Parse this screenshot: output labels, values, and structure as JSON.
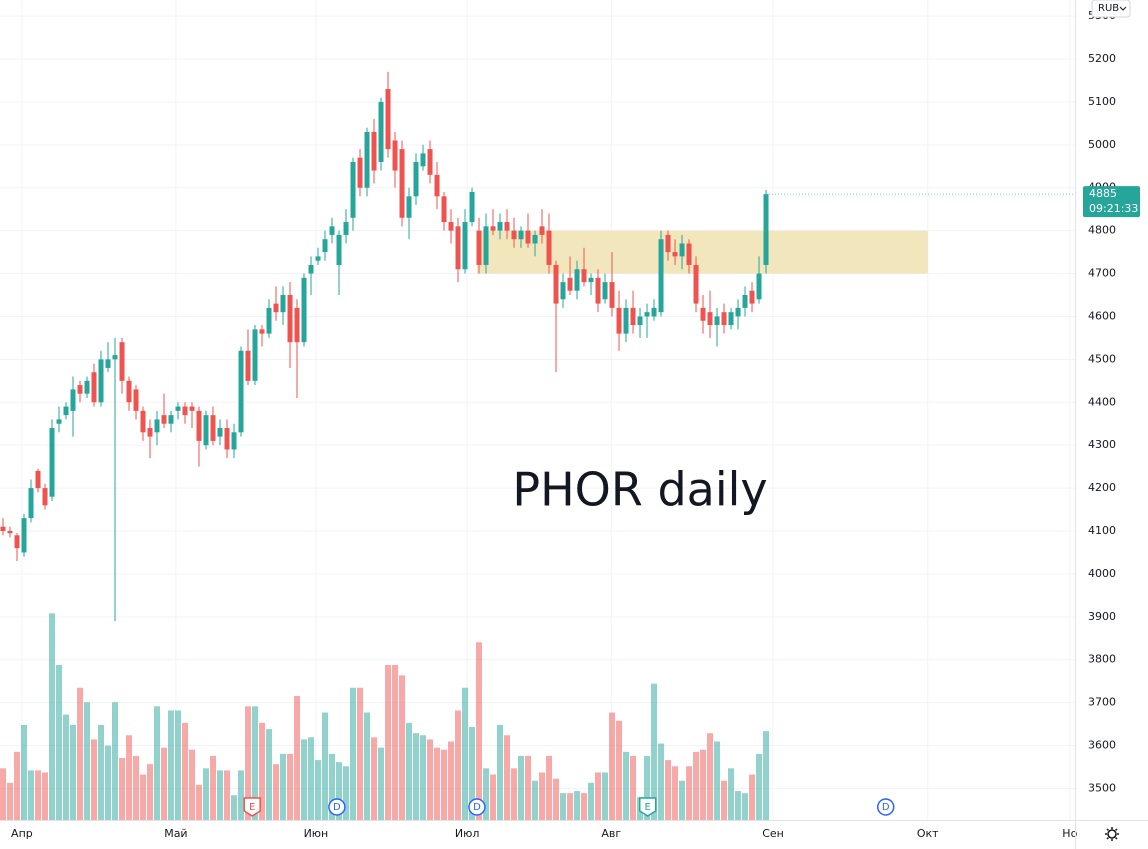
{
  "chart_data": {
    "type": "candlestick",
    "annotation": "PHOR daily",
    "currency": "RUB",
    "last_price": 4885,
    "countdown": "09:21:33",
    "up_color": "#26a69a",
    "down_color": "#ef5350",
    "grid": true,
    "ylim": [
      3426.5,
      5337.5
    ],
    "yticks": [
      3500,
      3600,
      3700,
      3800,
      3900,
      4000,
      4100,
      4200,
      4300,
      4400,
      4500,
      4600,
      4700,
      4800,
      4900,
      5000,
      5100,
      5200,
      5300
    ],
    "xlim": [
      -0.43,
      153.14
    ],
    "xticks": [
      {
        "value": 2.7,
        "label": "Апр"
      },
      {
        "value": 24.7,
        "label": "Май"
      },
      {
        "value": 44.7,
        "label": "Июн"
      },
      {
        "value": 66.3,
        "label": "Июл"
      },
      {
        "value": 86.9,
        "label": "Авг"
      },
      {
        "value": 110,
        "label": "Сен"
      },
      {
        "value": 132.1,
        "label": "Окт"
      },
      {
        "value": 152.4,
        "label": "Но"
      }
    ],
    "zone": {
      "low": 4700,
      "high": 4800,
      "start": 67.7,
      "end": 132.1,
      "color": "#f0e2b0"
    },
    "events": [
      {
        "label": "E",
        "x": 35.6
      },
      {
        "label": "D",
        "x": 47.7
      },
      {
        "label": "D",
        "x": 67.7
      },
      {
        "label": "E",
        "x": 92.1
      },
      {
        "label": "D",
        "x": 126.1
      }
    ],
    "vlim": [
      0,
      120
    ],
    "ohlc": [
      [
        4110,
        4130,
        4090,
        4100
      ],
      [
        4100,
        4110,
        4085,
        4095
      ],
      [
        4090,
        4095,
        4030,
        4060
      ],
      [
        4050,
        4140,
        4040,
        4130
      ],
      [
        4130,
        4220,
        4120,
        4200
      ],
      [
        4240,
        4245,
        4190,
        4200
      ],
      [
        4200,
        4210,
        4150,
        4160
      ],
      [
        4180,
        4360,
        4170,
        4340
      ],
      [
        4350,
        4390,
        4330,
        4360
      ],
      [
        4370,
        4400,
        4360,
        4390
      ],
      [
        4380,
        4460,
        4320,
        4430
      ],
      [
        4440,
        4450,
        4400,
        4420
      ],
      [
        4420,
        4460,
        4410,
        4450
      ],
      [
        4470,
        4490,
        4390,
        4400
      ],
      [
        4400,
        4520,
        4390,
        4500
      ],
      [
        4480,
        4540,
        4470,
        4500
      ],
      [
        4500,
        4550,
        3890,
        4510
      ],
      [
        4540,
        4550,
        4420,
        4450
      ],
      [
        4450,
        4460,
        4380,
        4400
      ],
      [
        4430,
        4440,
        4360,
        4380
      ],
      [
        4380,
        4390,
        4310,
        4330
      ],
      [
        4340,
        4360,
        4270,
        4320
      ],
      [
        4330,
        4380,
        4300,
        4360
      ],
      [
        4370,
        4420,
        4340,
        4350
      ],
      [
        4350,
        4380,
        4330,
        4370
      ],
      [
        4380,
        4400,
        4360,
        4390
      ],
      [
        4390,
        4400,
        4350,
        4370
      ],
      [
        4390,
        4400,
        4340,
        4380
      ],
      [
        4380,
        4390,
        4250,
        4310
      ],
      [
        4300,
        4380,
        4290,
        4370
      ],
      [
        4370,
        4390,
        4300,
        4310
      ],
      [
        4320,
        4360,
        4300,
        4340
      ],
      [
        4340,
        4360,
        4270,
        4290
      ],
      [
        4290,
        4350,
        4270,
        4330
      ],
      [
        4330,
        4530,
        4320,
        4520
      ],
      [
        4520,
        4570,
        4440,
        4450
      ],
      [
        4450,
        4580,
        4440,
        4570
      ],
      [
        4570,
        4580,
        4530,
        4560
      ],
      [
        4560,
        4640,
        4550,
        4620
      ],
      [
        4630,
        4670,
        4590,
        4610
      ],
      [
        4610,
        4670,
        4580,
        4650
      ],
      [
        4650,
        4680,
        4480,
        4540
      ],
      [
        4620,
        4640,
        4410,
        4540
      ],
      [
        4540,
        4700,
        4530,
        4690
      ],
      [
        4700,
        4740,
        4650,
        4720
      ],
      [
        4730,
        4760,
        4720,
        4740
      ],
      [
        4750,
        4800,
        4730,
        4780
      ],
      [
        4790,
        4830,
        4770,
        4810
      ],
      [
        4720,
        4800,
        4650,
        4790
      ],
      [
        4790,
        4850,
        4770,
        4820
      ],
      [
        4830,
        4970,
        4800,
        4960
      ],
      [
        4970,
        4990,
        4880,
        4900
      ],
      [
        4900,
        5040,
        4880,
        5030
      ],
      [
        5030,
        5060,
        4910,
        4940
      ],
      [
        4960,
        5110,
        4940,
        5100
      ],
      [
        5130,
        5170,
        4970,
        4990
      ],
      [
        5010,
        5030,
        4900,
        4940
      ],
      [
        4990,
        5010,
        4810,
        4830
      ],
      [
        4830,
        4900,
        4780,
        4880
      ],
      [
        4880,
        4980,
        4860,
        4960
      ],
      [
        4950,
        5000,
        4940,
        4980
      ],
      [
        4990,
        5010,
        4910,
        4930
      ],
      [
        4930,
        4960,
        4850,
        4880
      ],
      [
        4880,
        4890,
        4800,
        4820
      ],
      [
        4820,
        4850,
        4770,
        4800
      ],
      [
        4810,
        4830,
        4680,
        4710
      ],
      [
        4710,
        4850,
        4700,
        4820
      ],
      [
        4820,
        4900,
        4810,
        4890
      ],
      [
        4800,
        4830,
        4700,
        4720
      ],
      [
        4720,
        4840,
        4700,
        4810
      ],
      [
        4810,
        4850,
        4790,
        4800
      ],
      [
        4800,
        4840,
        4780,
        4820
      ],
      [
        4820,
        4850,
        4780,
        4800
      ],
      [
        4800,
        4830,
        4760,
        4780
      ],
      [
        4780,
        4810,
        4760,
        4800
      ],
      [
        4800,
        4840,
        4760,
        4770
      ],
      [
        4770,
        4800,
        4740,
        4790
      ],
      [
        4810,
        4850,
        4770,
        4790
      ],
      [
        4800,
        4840,
        4700,
        4720
      ],
      [
        4720,
        4730,
        4470,
        4630
      ],
      [
        4640,
        4700,
        4620,
        4680
      ],
      [
        4690,
        4740,
        4650,
        4660
      ],
      [
        4660,
        4730,
        4640,
        4710
      ],
      [
        4710,
        4760,
        4670,
        4680
      ],
      [
        4680,
        4700,
        4650,
        4690
      ],
      [
        4690,
        4710,
        4610,
        4630
      ],
      [
        4640,
        4700,
        4630,
        4680
      ],
      [
        4680,
        4750,
        4600,
        4620
      ],
      [
        4620,
        4660,
        4520,
        4560
      ],
      [
        4560,
        4640,
        4540,
        4620
      ],
      [
        4620,
        4660,
        4560,
        4580
      ],
      [
        4580,
        4620,
        4550,
        4600
      ],
      [
        4600,
        4630,
        4550,
        4610
      ],
      [
        4600,
        4640,
        4590,
        4620
      ],
      [
        4610,
        4800,
        4600,
        4780
      ],
      [
        4790,
        4800,
        4730,
        4750
      ],
      [
        4750,
        4780,
        4720,
        4740
      ],
      [
        4740,
        4790,
        4710,
        4770
      ],
      [
        4770,
        4780,
        4700,
        4720
      ],
      [
        4720,
        4740,
        4610,
        4630
      ],
      [
        4620,
        4650,
        4560,
        4590
      ],
      [
        4610,
        4660,
        4550,
        4580
      ],
      [
        4580,
        4620,
        4530,
        4600
      ],
      [
        4610,
        4630,
        4560,
        4580
      ],
      [
        4580,
        4620,
        4570,
        4610
      ],
      [
        4600,
        4640,
        4570,
        4620
      ],
      [
        4620,
        4670,
        4600,
        4650
      ],
      [
        4660,
        4680,
        4610,
        4630
      ],
      [
        4640,
        4740,
        4630,
        4700
      ],
      [
        4720,
        4895,
        4700,
        4885
      ]
    ],
    "volume": [
      25,
      18,
      33,
      46,
      24,
      24,
      23,
      100,
      75,
      51,
      46,
      64,
      57,
      39,
      46,
      36,
      57,
      30,
      41,
      31,
      22,
      27,
      55,
      35,
      53,
      53,
      47,
      34,
      17,
      25,
      31,
      24,
      24,
      12,
      24,
      55,
      55,
      47,
      44,
      27,
      32,
      32,
      60,
      39,
      40,
      29,
      52,
      32,
      28,
      26,
      64,
      64,
      52,
      40,
      35,
      75,
      75,
      70,
      47,
      42,
      41,
      39,
      35,
      34,
      38,
      53,
      64,
      45,
      86,
      25,
      22,
      46,
      41,
      25,
      31,
      31,
      19,
      23,
      31,
      20,
      13,
      13,
      14,
      13,
      18,
      23,
      23,
      52,
      48,
      33,
      31,
      11,
      31,
      66,
      37,
      29,
      26,
      19,
      26,
      33,
      34,
      42,
      38,
      19,
      25,
      14,
      13,
      22,
      32,
      43
    ]
  }
}
